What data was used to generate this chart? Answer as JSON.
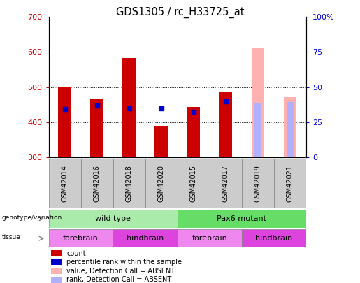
{
  "title": "GDS1305 / rc_H33725_at",
  "samples": [
    "GSM42014",
    "GSM42016",
    "GSM42018",
    "GSM42020",
    "GSM42015",
    "GSM42017",
    "GSM42019",
    "GSM42021"
  ],
  "count_values": [
    500,
    465,
    583,
    390,
    443,
    488,
    null,
    null
  ],
  "count_bottom": [
    300,
    300,
    300,
    300,
    300,
    300,
    null,
    null
  ],
  "percentile_rank": [
    437,
    448,
    440,
    440,
    430,
    460,
    null,
    null
  ],
  "absent_value": [
    null,
    null,
    null,
    null,
    null,
    null,
    610,
    472
  ],
  "absent_value_bottom": [
    null,
    null,
    null,
    null,
    null,
    null,
    300,
    300
  ],
  "absent_rank": [
    null,
    null,
    null,
    null,
    null,
    null,
    455,
    458
  ],
  "absent_rank_bottom": [
    null,
    null,
    null,
    null,
    null,
    null,
    300,
    300
  ],
  "ylim_left": [
    300,
    700
  ],
  "ylim_right": [
    0,
    100
  ],
  "yticks_left": [
    300,
    400,
    500,
    600,
    700
  ],
  "yticks_right": [
    0,
    25,
    50,
    75,
    100
  ],
  "ytick_labels_right": [
    "0",
    "25",
    "50",
    "75",
    "100%"
  ],
  "color_count": "#cc0000",
  "color_rank": "#0000cc",
  "color_absent_value": "#ffb0b0",
  "color_absent_rank": "#b0b0ff",
  "genotype_groups": [
    {
      "label": "wild type",
      "start": 0,
      "end": 4,
      "color": "#aaeaaa"
    },
    {
      "label": "Pax6 mutant",
      "start": 4,
      "end": 8,
      "color": "#66dd66"
    }
  ],
  "tissue_groups": [
    {
      "label": "forebrain",
      "start": 0,
      "end": 2,
      "color": "#ee88ee"
    },
    {
      "label": "hindbrain",
      "start": 2,
      "end": 4,
      "color": "#dd44dd"
    },
    {
      "label": "forebrain",
      "start": 4,
      "end": 6,
      "color": "#ee88ee"
    },
    {
      "label": "hindbrain",
      "start": 6,
      "end": 8,
      "color": "#dd44dd"
    }
  ],
  "legend_items": [
    {
      "label": "count",
      "color": "#cc0000"
    },
    {
      "label": "percentile rank within the sample",
      "color": "#0000cc"
    },
    {
      "label": "value, Detection Call = ABSENT",
      "color": "#ffb0b0"
    },
    {
      "label": "rank, Detection Call = ABSENT",
      "color": "#b0b0ff"
    }
  ],
  "bar_width": 0.4
}
